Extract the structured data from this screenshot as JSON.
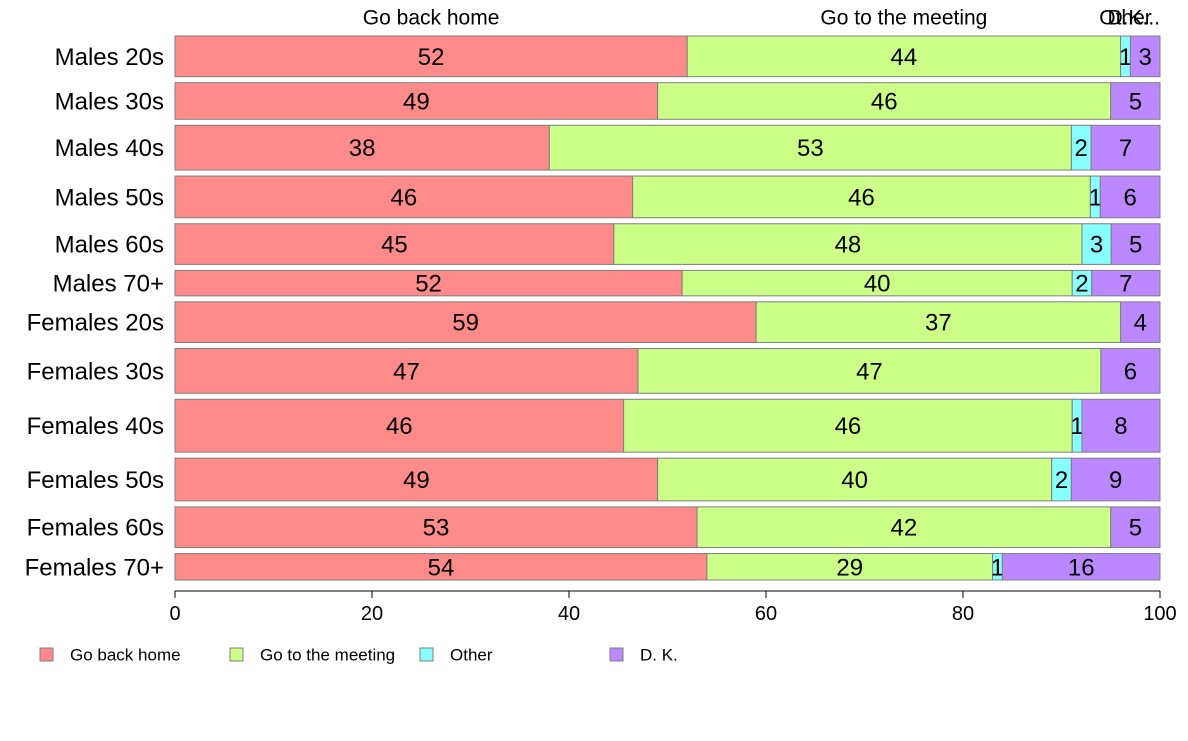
{
  "chart_data": {
    "type": "bar",
    "orientation": "horizontal",
    "stacked": true,
    "variable_width": true,
    "categories": [
      "Males 20s",
      "Males 30s",
      "Males 40s",
      "Males 50s",
      "Males 60s",
      "Males 70+",
      "Females 20s",
      "Females 30s",
      "Females 40s",
      "Females 50s",
      "Females 60s",
      "Females 70+"
    ],
    "group_sizes": [
      40,
      36,
      44,
      41,
      40,
      25,
      40,
      44,
      52,
      42,
      40,
      26
    ],
    "series": [
      {
        "name": "Go back home",
        "color": "#FF8A8A",
        "values": [
          52,
          49,
          38,
          46,
          45,
          52,
          59,
          47,
          46,
          49,
          53,
          54
        ]
      },
      {
        "name": "Go to the meeting",
        "color": "#CCFF88",
        "values": [
          44,
          46,
          53,
          46,
          48,
          40,
          37,
          47,
          46,
          40,
          42,
          29
        ]
      },
      {
        "name": "Other",
        "color": "#88FFFF",
        "values": [
          1,
          0,
          2,
          1,
          3,
          2,
          0,
          0,
          1,
          2,
          0,
          1
        ]
      },
      {
        "name": "D. K.",
        "color": "#BB88FF",
        "values": [
          3,
          5,
          7,
          6,
          5,
          7,
          4,
          6,
          8,
          9,
          5,
          16
        ]
      }
    ],
    "top_labels": [
      "Go back home",
      "Go to the meeting",
      "Other",
      "D.K..."
    ],
    "x_ticks": [
      0,
      20,
      40,
      60,
      80,
      100
    ],
    "xlim": [
      0,
      100
    ],
    "grid": false,
    "legend_position": "bottom",
    "legend": [
      {
        "label": "Go back home",
        "color": "#FF8A8A"
      },
      {
        "label": "Go to the meeting",
        "color": "#CCFF88"
      },
      {
        "label": "Other",
        "color": "#88FFFF"
      },
      {
        "label": "D. K.",
        "color": "#BB88FF"
      }
    ]
  }
}
